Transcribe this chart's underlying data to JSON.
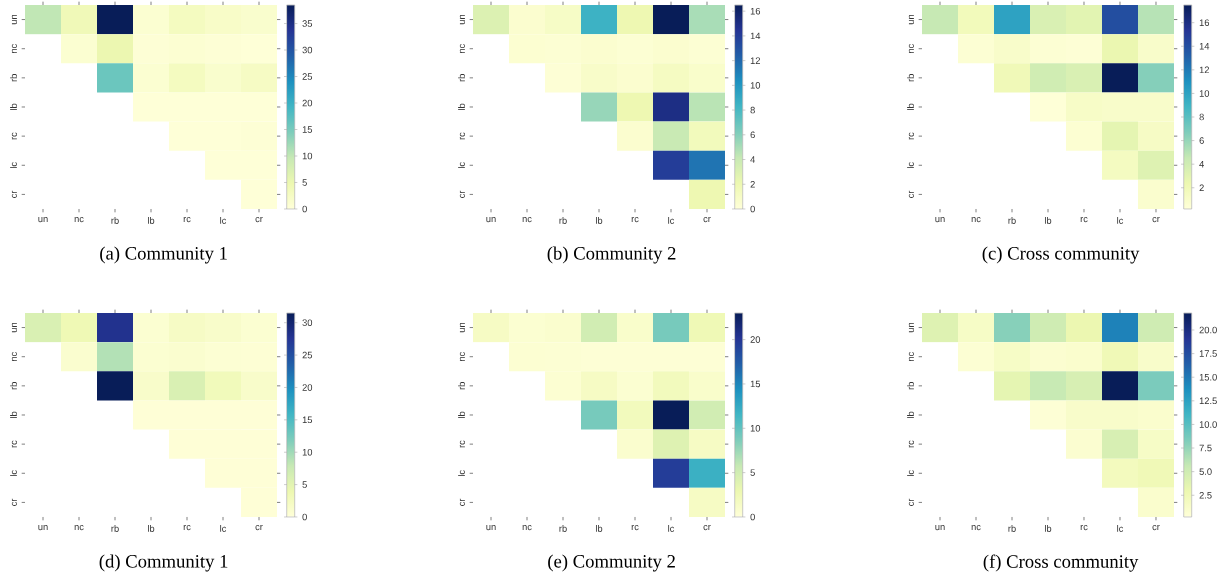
{
  "chart_data": [
    {
      "type": "heatmap",
      "title": "(a) Community 1",
      "categories": [
        "un",
        "nc",
        "rb",
        "lb",
        "rc",
        "lc",
        "cr"
      ],
      "y_categories": [
        "un",
        "nc",
        "rb",
        "lb",
        "rc",
        "lc",
        "cr"
      ],
      "cells": [
        [
          10,
          4,
          38.5,
          1,
          3,
          2,
          1.5
        ],
        [
          null,
          1,
          5,
          0.5,
          0.8,
          0.5,
          0.3
        ],
        [
          null,
          null,
          16,
          1,
          3,
          1.5,
          2.5
        ],
        [
          null,
          null,
          null,
          0.2,
          0.3,
          0.3,
          0.3
        ],
        [
          null,
          null,
          null,
          null,
          0.3,
          0.3,
          0.5
        ],
        [
          null,
          null,
          null,
          null,
          null,
          0.3,
          0.3
        ],
        [
          null,
          null,
          null,
          null,
          null,
          null,
          0.3
        ]
      ],
      "clim": [
        0,
        38.5
      ],
      "cticks": [
        0,
        5,
        10,
        15,
        20,
        25,
        30,
        35
      ]
    },
    {
      "type": "heatmap",
      "title": "(b) Community 2",
      "categories": [
        "un",
        "nc",
        "rb",
        "lb",
        "rc",
        "lc",
        "cr"
      ],
      "y_categories": [
        "un",
        "nc",
        "rb",
        "lb",
        "rc",
        "lc",
        "cr"
      ],
      "cells": [
        [
          3,
          0.5,
          1,
          8.5,
          2,
          16.5,
          5
        ],
        [
          null,
          0.4,
          0.3,
          0.5,
          0.3,
          0.5,
          0.3
        ],
        [
          null,
          null,
          0.2,
          0.8,
          0.5,
          1.2,
          0.7
        ],
        [
          null,
          null,
          null,
          5.5,
          2,
          15,
          4.5
        ],
        [
          null,
          null,
          null,
          null,
          0.5,
          4,
          1.5
        ],
        [
          null,
          null,
          null,
          null,
          null,
          14,
          11.5
        ],
        [
          null,
          null,
          null,
          null,
          null,
          null,
          2
        ]
      ],
      "clim": [
        0,
        16.5
      ],
      "cticks": [
        0,
        2,
        4,
        6,
        8,
        10,
        12,
        14,
        16
      ]
    },
    {
      "type": "heatmap",
      "title": "(c) Cross community",
      "categories": [
        "un",
        "nc",
        "rb",
        "lb",
        "rc",
        "lc",
        "cr"
      ],
      "y_categories": [
        "un",
        "nc",
        "rb",
        "lb",
        "rc",
        "lc",
        "cr"
      ],
      "cells": [
        [
          4.5,
          1.8,
          10,
          3.5,
          3,
          14,
          5
        ],
        [
          null,
          0.5,
          1,
          0.5,
          0.4,
          2.5,
          1
        ],
        [
          null,
          null,
          2,
          4,
          3.5,
          17.5,
          6.5
        ],
        [
          null,
          null,
          null,
          0.3,
          1.2,
          1,
          1
        ],
        [
          null,
          null,
          null,
          null,
          0.6,
          2.8,
          1.3
        ],
        [
          null,
          null,
          null,
          null,
          null,
          1.5,
          3.2
        ],
        [
          null,
          null,
          null,
          null,
          null,
          null,
          0.8
        ]
      ],
      "clim": [
        0.2,
        17.5
      ],
      "cticks": [
        2,
        4,
        6,
        8,
        10,
        12,
        14,
        16
      ]
    },
    {
      "type": "heatmap",
      "title": "(d) Community 1",
      "categories": [
        "un",
        "nc",
        "rb",
        "lb",
        "rc",
        "lc",
        "cr"
      ],
      "y_categories": [
        "un",
        "nc",
        "rb",
        "lb",
        "rc",
        "lc",
        "cr"
      ],
      "cells": [
        [
          6,
          3.5,
          28,
          0.8,
          2,
          1.5,
          0.8
        ],
        [
          null,
          1,
          9,
          0.8,
          1,
          0.6,
          0.5
        ],
        [
          null,
          null,
          31.5,
          1.5,
          6,
          3,
          1.5
        ],
        [
          null,
          null,
          null,
          0.3,
          0.3,
          0.3,
          0.3
        ],
        [
          null,
          null,
          null,
          null,
          0.3,
          0.3,
          0.3
        ],
        [
          null,
          null,
          null,
          null,
          null,
          0.3,
          0.3
        ],
        [
          null,
          null,
          null,
          null,
          null,
          null,
          0.3
        ]
      ],
      "clim": [
        0,
        31.5
      ],
      "cticks": [
        0,
        5,
        10,
        15,
        20,
        25,
        30
      ]
    },
    {
      "type": "heatmap",
      "title": "(e) Community 2",
      "categories": [
        "un",
        "nc",
        "rb",
        "lb",
        "rc",
        "lc",
        "cr"
      ],
      "y_categories": [
        "un",
        "nc",
        "rb",
        "lb",
        "rc",
        "lc",
        "cr"
      ],
      "cells": [
        [
          1.5,
          0.6,
          0.8,
          5,
          1,
          9,
          2.5
        ],
        [
          null,
          0.5,
          0.4,
          0.3,
          0.3,
          0.3,
          0.3
        ],
        [
          null,
          null,
          0.5,
          1.5,
          0.6,
          2,
          1
        ],
        [
          null,
          null,
          null,
          9,
          2,
          23,
          5
        ],
        [
          null,
          null,
          null,
          null,
          0.8,
          4,
          1.5
        ],
        [
          null,
          null,
          null,
          null,
          null,
          19.5,
          12
        ],
        [
          null,
          null,
          null,
          null,
          null,
          null,
          1.5
        ]
      ],
      "clim": [
        0,
        23
      ],
      "cticks": [
        0,
        5,
        10,
        15,
        20
      ]
    },
    {
      "type": "heatmap",
      "title": "(f) Cross community",
      "categories": [
        "un",
        "nc",
        "rb",
        "lb",
        "rc",
        "lc",
        "cr"
      ],
      "y_categories": [
        "un",
        "nc",
        "rb",
        "lb",
        "rc",
        "lc",
        "cr"
      ],
      "cells": [
        [
          4,
          1.5,
          8,
          5,
          3,
          14.5,
          5
        ],
        [
          null,
          0.6,
          1.5,
          0.8,
          1,
          2.5,
          1.2
        ],
        [
          null,
          null,
          3.5,
          5.5,
          4.5,
          21.8,
          8.5
        ],
        [
          null,
          null,
          null,
          0.5,
          1.2,
          1.2,
          1
        ],
        [
          null,
          null,
          null,
          null,
          0.8,
          4.5,
          1.5
        ],
        [
          null,
          null,
          null,
          null,
          null,
          2,
          2.5
        ],
        [
          null,
          null,
          null,
          null,
          null,
          null,
          1
        ]
      ],
      "clim": [
        0.2,
        21.8
      ],
      "cticks": [
        2.5,
        {
          "value": 5,
          "label": "5.0"
        },
        7.5,
        {
          "value": 10,
          "label": "10.0"
        },
        12.5,
        {
          "value": 15,
          "label": "15.0"
        },
        17.5,
        {
          "value": 20,
          "label": "20.0"
        }
      ]
    }
  ]
}
